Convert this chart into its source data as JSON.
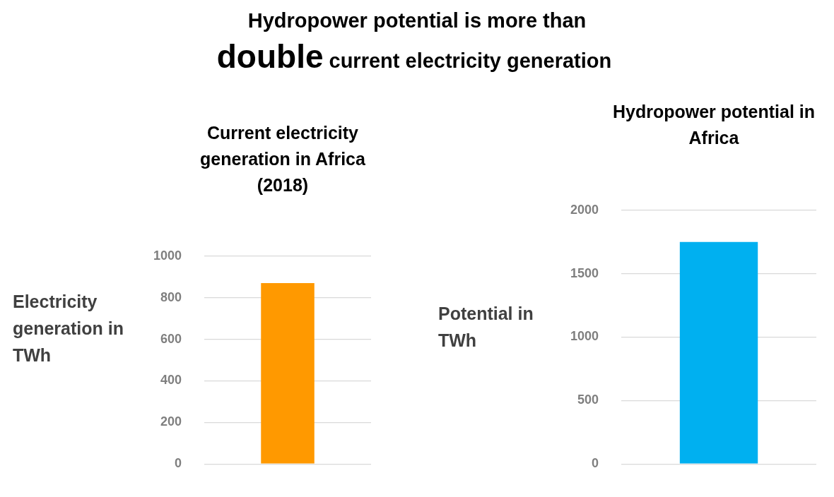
{
  "chart_data": [
    {
      "type": "other",
      "title": "Hydropower potential is more than",
      "annotations": [
        "double",
        "current electricity generation"
      ]
    },
    {
      "type": "bar",
      "title": "Current electricity generation in Africa (2018)",
      "ylabel": "Electricity generation in TWh",
      "categories": [
        null
      ],
      "values": [
        870
      ],
      "color": "#ff9900",
      "ylim": [
        0,
        1000
      ],
      "yticks": [
        0,
        200,
        400,
        600,
        800,
        1000
      ],
      "grid": "y",
      "tick_labels": "y"
    },
    {
      "type": "bar",
      "title": "Hydropower potential in Africa",
      "ylabel": "Potential in TWh",
      "categories": [
        null
      ],
      "values": [
        1750
      ],
      "color": "#00b0f0",
      "ylim": [
        0,
        2000
      ],
      "yticks": [
        0,
        500,
        1000,
        1500,
        2000
      ],
      "grid": "y",
      "tick_labels": "y"
    }
  ]
}
